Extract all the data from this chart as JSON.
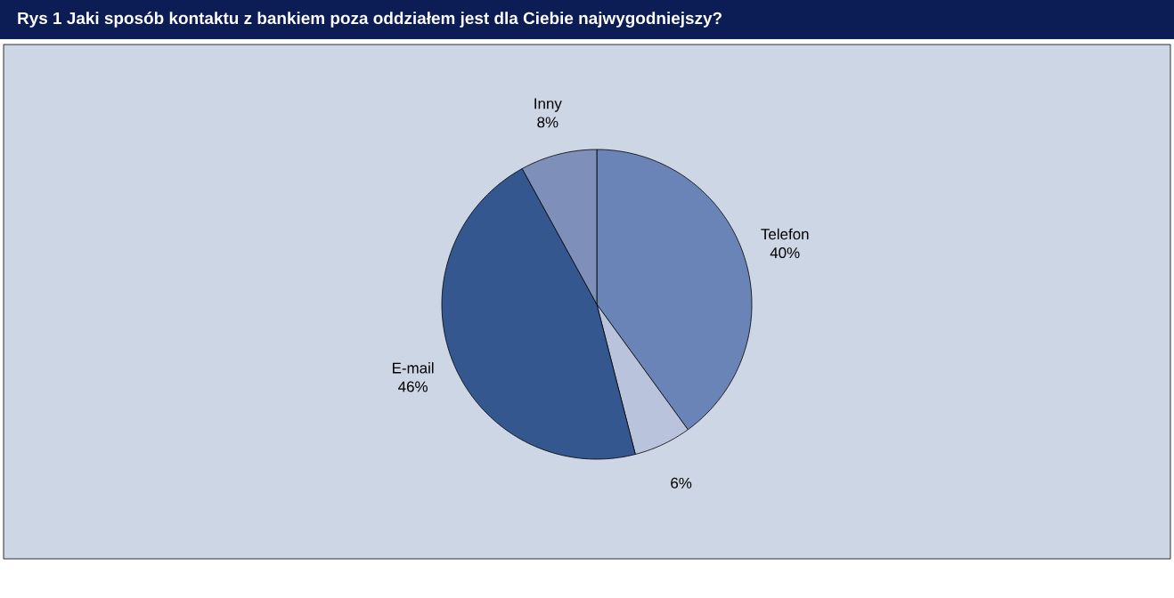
{
  "chart_data": {
    "type": "pie",
    "title": "Rys 1   Jaki sposób kontaktu z bankiem poza oddziałem jest dla Ciebie najwygodniejszy?",
    "categories": [
      "Telefon",
      null,
      "E-mail",
      "Inny"
    ],
    "values": [
      40,
      6,
      46,
      8
    ],
    "value_labels": [
      "40%",
      "6%",
      "46%",
      "8%"
    ],
    "colors": [
      "#6b84b7",
      "#b9c4dc",
      "#34578f",
      "#7e90b9"
    ]
  }
}
